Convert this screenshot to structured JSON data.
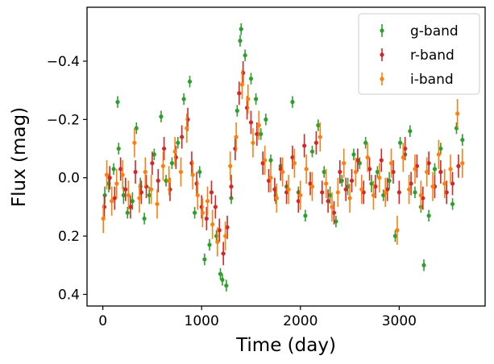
{
  "chart_data": {
    "type": "scatter",
    "title": "",
    "xlabel": "Time (day)",
    "ylabel": "Flux (mag)",
    "xlim": [
      -160,
      3870
    ],
    "ylim": [
      0.44,
      -0.585
    ],
    "y_inverted": true,
    "grid": false,
    "legend_position": "top-right",
    "xticks": [
      0,
      1000,
      2000,
      3000
    ],
    "xtick_labels": [
      "0",
      "1000",
      "2000",
      "3000"
    ],
    "yticks": [
      -0.4,
      -0.2,
      0.0,
      0.2,
      0.4
    ],
    "ytick_labels": [
      "−0.4",
      "−0.2",
      "0.0",
      "0.2",
      "0.4"
    ],
    "legend": [
      "g-band",
      "r-band",
      "i-band"
    ],
    "series": [
      {
        "name": "g-band",
        "color": "#2ca02c",
        "points": [
          {
            "x": 20,
            "y": 0.06,
            "e": 0.03
          },
          {
            "x": 60,
            "y": 0.02,
            "e": 0.03
          },
          {
            "x": 110,
            "y": -0.03,
            "e": 0.02
          },
          {
            "x": 150,
            "y": -0.26,
            "e": 0.02
          },
          {
            "x": 160,
            "y": -0.1,
            "e": 0.02
          },
          {
            "x": 210,
            "y": 0.06,
            "e": 0.03
          },
          {
            "x": 250,
            "y": 0.12,
            "e": 0.02
          },
          {
            "x": 300,
            "y": 0.08,
            "e": 0.03
          },
          {
            "x": 340,
            "y": -0.17,
            "e": 0.02
          },
          {
            "x": 380,
            "y": 0.03,
            "e": 0.03
          },
          {
            "x": 420,
            "y": 0.14,
            "e": 0.02
          },
          {
            "x": 470,
            "y": 0.06,
            "e": 0.03
          },
          {
            "x": 520,
            "y": -0.08,
            "e": 0.02
          },
          {
            "x": 590,
            "y": -0.21,
            "e": 0.02
          },
          {
            "x": 640,
            "y": 0.01,
            "e": 0.02
          },
          {
            "x": 700,
            "y": -0.05,
            "e": 0.02
          },
          {
            "x": 760,
            "y": -0.12,
            "e": 0.02
          },
          {
            "x": 820,
            "y": -0.27,
            "e": 0.02
          },
          {
            "x": 880,
            "y": -0.33,
            "e": 0.02
          },
          {
            "x": 930,
            "y": 0.12,
            "e": 0.02
          },
          {
            "x": 980,
            "y": -0.02,
            "e": 0.02
          },
          {
            "x": 1030,
            "y": 0.28,
            "e": 0.02
          },
          {
            "x": 1080,
            "y": 0.23,
            "e": 0.02
          },
          {
            "x": 1150,
            "y": 0.2,
            "e": 0.02
          },
          {
            "x": 1190,
            "y": 0.33,
            "e": 0.02
          },
          {
            "x": 1210,
            "y": 0.35,
            "e": 0.02
          },
          {
            "x": 1250,
            "y": 0.37,
            "e": 0.02
          },
          {
            "x": 1300,
            "y": 0.07,
            "e": 0.02
          },
          {
            "x": 1360,
            "y": -0.23,
            "e": 0.02
          },
          {
            "x": 1390,
            "y": -0.47,
            "e": 0.02
          },
          {
            "x": 1400,
            "y": -0.51,
            "e": 0.02
          },
          {
            "x": 1440,
            "y": -0.42,
            "e": 0.02
          },
          {
            "x": 1500,
            "y": -0.34,
            "e": 0.02
          },
          {
            "x": 1550,
            "y": -0.27,
            "e": 0.02
          },
          {
            "x": 1600,
            "y": -0.15,
            "e": 0.02
          },
          {
            "x": 1650,
            "y": -0.2,
            "e": 0.02
          },
          {
            "x": 1700,
            "y": -0.06,
            "e": 0.02
          },
          {
            "x": 1750,
            "y": 0.06,
            "e": 0.03
          },
          {
            "x": 1800,
            "y": -0.04,
            "e": 0.02
          },
          {
            "x": 1860,
            "y": 0.03,
            "e": 0.02
          },
          {
            "x": 1920,
            "y": -0.26,
            "e": 0.02
          },
          {
            "x": 1980,
            "y": 0.05,
            "e": 0.02
          },
          {
            "x": 2050,
            "y": 0.13,
            "e": 0.02
          },
          {
            "x": 2120,
            "y": -0.09,
            "e": 0.02
          },
          {
            "x": 2180,
            "y": -0.18,
            "e": 0.02
          },
          {
            "x": 2240,
            "y": -0.02,
            "e": 0.02
          },
          {
            "x": 2300,
            "y": 0.06,
            "e": 0.03
          },
          {
            "x": 2360,
            "y": 0.15,
            "e": 0.02
          },
          {
            "x": 2420,
            "y": 0.01,
            "e": 0.02
          },
          {
            "x": 2480,
            "y": 0.03,
            "e": 0.03
          },
          {
            "x": 2540,
            "y": -0.08,
            "e": 0.02
          },
          {
            "x": 2600,
            "y": -0.05,
            "e": 0.02
          },
          {
            "x": 2660,
            "y": -0.12,
            "e": 0.02
          },
          {
            "x": 2720,
            "y": 0.02,
            "e": 0.03
          },
          {
            "x": 2780,
            "y": -0.02,
            "e": 0.02
          },
          {
            "x": 2840,
            "y": 0.06,
            "e": 0.02
          },
          {
            "x": 2900,
            "y": 0.01,
            "e": 0.03
          },
          {
            "x": 2960,
            "y": 0.2,
            "e": 0.02
          },
          {
            "x": 3010,
            "y": -0.12,
            "e": 0.02
          },
          {
            "x": 3060,
            "y": -0.08,
            "e": 0.02
          },
          {
            "x": 3110,
            "y": -0.16,
            "e": 0.02
          },
          {
            "x": 3160,
            "y": 0.05,
            "e": 0.02
          },
          {
            "x": 3220,
            "y": 0.1,
            "e": 0.02
          },
          {
            "x": 3250,
            "y": 0.3,
            "e": 0.02
          },
          {
            "x": 3300,
            "y": 0.13,
            "e": 0.02
          },
          {
            "x": 3360,
            "y": -0.03,
            "e": 0.02
          },
          {
            "x": 3420,
            "y": -0.1,
            "e": 0.02
          },
          {
            "x": 3480,
            "y": 0.05,
            "e": 0.02
          },
          {
            "x": 3540,
            "y": 0.09,
            "e": 0.02
          },
          {
            "x": 3580,
            "y": -0.17,
            "e": 0.02
          },
          {
            "x": 3640,
            "y": -0.13,
            "e": 0.02
          }
        ]
      },
      {
        "name": "r-band",
        "color": "#d62728",
        "points": [
          {
            "x": 15,
            "y": 0.1,
            "e": 0.04
          },
          {
            "x": 70,
            "y": 0.0,
            "e": 0.04
          },
          {
            "x": 120,
            "y": 0.07,
            "e": 0.04
          },
          {
            "x": 180,
            "y": -0.03,
            "e": 0.04
          },
          {
            "x": 230,
            "y": 0.04,
            "e": 0.04
          },
          {
            "x": 280,
            "y": 0.1,
            "e": 0.04
          },
          {
            "x": 330,
            "y": -0.02,
            "e": 0.04
          },
          {
            "x": 390,
            "y": 0.05,
            "e": 0.04
          },
          {
            "x": 440,
            "y": 0.03,
            "e": 0.04
          },
          {
            "x": 500,
            "y": -0.05,
            "e": 0.04
          },
          {
            "x": 560,
            "y": 0.01,
            "e": 0.04
          },
          {
            "x": 620,
            "y": -0.1,
            "e": 0.04
          },
          {
            "x": 680,
            "y": 0.04,
            "e": 0.04
          },
          {
            "x": 740,
            "y": -0.07,
            "e": 0.04
          },
          {
            "x": 800,
            "y": -0.14,
            "e": 0.04
          },
          {
            "x": 860,
            "y": -0.2,
            "e": 0.04
          },
          {
            "x": 900,
            "y": -0.05,
            "e": 0.04
          },
          {
            "x": 950,
            "y": 0.02,
            "e": 0.04
          },
          {
            "x": 1000,
            "y": 0.1,
            "e": 0.04
          },
          {
            "x": 1050,
            "y": 0.14,
            "e": 0.04
          },
          {
            "x": 1100,
            "y": 0.05,
            "e": 0.04
          },
          {
            "x": 1140,
            "y": 0.1,
            "e": 0.04
          },
          {
            "x": 1180,
            "y": 0.18,
            "e": 0.04
          },
          {
            "x": 1220,
            "y": 0.26,
            "e": 0.04
          },
          {
            "x": 1260,
            "y": 0.17,
            "e": 0.04
          },
          {
            "x": 1300,
            "y": 0.03,
            "e": 0.04
          },
          {
            "x": 1340,
            "y": -0.1,
            "e": 0.04
          },
          {
            "x": 1380,
            "y": -0.29,
            "e": 0.04
          },
          {
            "x": 1420,
            "y": -0.36,
            "e": 0.04
          },
          {
            "x": 1460,
            "y": -0.24,
            "e": 0.04
          },
          {
            "x": 1500,
            "y": -0.19,
            "e": 0.04
          },
          {
            "x": 1560,
            "y": -0.15,
            "e": 0.04
          },
          {
            "x": 1620,
            "y": -0.05,
            "e": 0.04
          },
          {
            "x": 1680,
            "y": 0.01,
            "e": 0.04
          },
          {
            "x": 1740,
            "y": 0.04,
            "e": 0.04
          },
          {
            "x": 1800,
            "y": -0.03,
            "e": 0.04
          },
          {
            "x": 1860,
            "y": 0.05,
            "e": 0.04
          },
          {
            "x": 1920,
            "y": -0.07,
            "e": 0.04
          },
          {
            "x": 1980,
            "y": 0.08,
            "e": 0.04
          },
          {
            "x": 2040,
            "y": -0.11,
            "e": 0.04
          },
          {
            "x": 2100,
            "y": 0.02,
            "e": 0.04
          },
          {
            "x": 2160,
            "y": -0.12,
            "e": 0.04
          },
          {
            "x": 2220,
            "y": 0.05,
            "e": 0.04
          },
          {
            "x": 2280,
            "y": 0.08,
            "e": 0.04
          },
          {
            "x": 2340,
            "y": 0.12,
            "e": 0.04
          },
          {
            "x": 2400,
            "y": -0.02,
            "e": 0.04
          },
          {
            "x": 2460,
            "y": 0.04,
            "e": 0.04
          },
          {
            "x": 2520,
            "y": 0.01,
            "e": 0.04
          },
          {
            "x": 2580,
            "y": -0.06,
            "e": 0.04
          },
          {
            "x": 2640,
            "y": 0.05,
            "e": 0.04
          },
          {
            "x": 2700,
            "y": -0.03,
            "e": 0.04
          },
          {
            "x": 2760,
            "y": 0.03,
            "e": 0.04
          },
          {
            "x": 2820,
            "y": -0.06,
            "e": 0.04
          },
          {
            "x": 2880,
            "y": 0.04,
            "e": 0.04
          },
          {
            "x": 2940,
            "y": -0.02,
            "e": 0.04
          },
          {
            "x": 3000,
            "y": 0.05,
            "e": 0.04
          },
          {
            "x": 3060,
            "y": -0.1,
            "e": 0.04
          },
          {
            "x": 3120,
            "y": 0.02,
            "e": 0.04
          },
          {
            "x": 3180,
            "y": -0.04,
            "e": 0.04
          },
          {
            "x": 3240,
            "y": 0.07,
            "e": 0.04
          },
          {
            "x": 3300,
            "y": -0.05,
            "e": 0.04
          },
          {
            "x": 3360,
            "y": 0.03,
            "e": 0.04
          },
          {
            "x": 3420,
            "y": -0.02,
            "e": 0.04
          },
          {
            "x": 3480,
            "y": 0.05,
            "e": 0.04
          },
          {
            "x": 3540,
            "y": 0.02,
            "e": 0.04
          },
          {
            "x": 3600,
            "y": -0.04,
            "e": 0.04
          }
        ]
      },
      {
        "name": "i-band",
        "color": "#ff7f0e",
        "points": [
          {
            "x": 5,
            "y": 0.14,
            "e": 0.05
          },
          {
            "x": 40,
            "y": -0.01,
            "e": 0.05
          },
          {
            "x": 90,
            "y": 0.08,
            "e": 0.05
          },
          {
            "x": 140,
            "y": 0.02,
            "e": 0.05
          },
          {
            "x": 200,
            "y": -0.01,
            "e": 0.05
          },
          {
            "x": 260,
            "y": 0.06,
            "e": 0.05
          },
          {
            "x": 320,
            "y": -0.12,
            "e": 0.05
          },
          {
            "x": 370,
            "y": 0.07,
            "e": 0.05
          },
          {
            "x": 430,
            "y": -0.02,
            "e": 0.05
          },
          {
            "x": 490,
            "y": 0.04,
            "e": 0.05
          },
          {
            "x": 550,
            "y": 0.09,
            "e": 0.05
          },
          {
            "x": 610,
            "y": -0.04,
            "e": 0.05
          },
          {
            "x": 670,
            "y": 0.01,
            "e": 0.05
          },
          {
            "x": 730,
            "y": -0.09,
            "e": 0.05
          },
          {
            "x": 790,
            "y": -0.02,
            "e": 0.05
          },
          {
            "x": 850,
            "y": -0.17,
            "e": 0.05
          },
          {
            "x": 910,
            "y": -0.01,
            "e": 0.05
          },
          {
            "x": 960,
            "y": 0.06,
            "e": 0.05
          },
          {
            "x": 1010,
            "y": 0.12,
            "e": 0.05
          },
          {
            "x": 1060,
            "y": 0.08,
            "e": 0.05
          },
          {
            "x": 1110,
            "y": 0.16,
            "e": 0.05
          },
          {
            "x": 1160,
            "y": 0.22,
            "e": 0.05
          },
          {
            "x": 1240,
            "y": 0.2,
            "e": 0.05
          },
          {
            "x": 1290,
            "y": -0.04,
            "e": 0.05
          },
          {
            "x": 1350,
            "y": -0.14,
            "e": 0.05
          },
          {
            "x": 1410,
            "y": -0.32,
            "e": 0.05
          },
          {
            "x": 1470,
            "y": -0.27,
            "e": 0.05
          },
          {
            "x": 1520,
            "y": -0.12,
            "e": 0.05
          },
          {
            "x": 1580,
            "y": -0.18,
            "e": 0.05
          },
          {
            "x": 1640,
            "y": -0.06,
            "e": 0.05
          },
          {
            "x": 1700,
            "y": 0.0,
            "e": 0.05
          },
          {
            "x": 1760,
            "y": 0.07,
            "e": 0.05
          },
          {
            "x": 1820,
            "y": -0.02,
            "e": 0.05
          },
          {
            "x": 1880,
            "y": 0.04,
            "e": 0.05
          },
          {
            "x": 1940,
            "y": -0.05,
            "e": 0.05
          },
          {
            "x": 2000,
            "y": 0.06,
            "e": 0.05
          },
          {
            "x": 2060,
            "y": -0.03,
            "e": 0.05
          },
          {
            "x": 2120,
            "y": 0.03,
            "e": 0.05
          },
          {
            "x": 2200,
            "y": -0.14,
            "e": 0.05
          },
          {
            "x": 2260,
            "y": 0.02,
            "e": 0.05
          },
          {
            "x": 2320,
            "y": 0.1,
            "e": 0.05
          },
          {
            "x": 2380,
            "y": 0.05,
            "e": 0.05
          },
          {
            "x": 2440,
            "y": -0.05,
            "e": 0.05
          },
          {
            "x": 2500,
            "y": 0.07,
            "e": 0.05
          },
          {
            "x": 2560,
            "y": -0.02,
            "e": 0.05
          },
          {
            "x": 2620,
            "y": 0.04,
            "e": 0.05
          },
          {
            "x": 2680,
            "y": -0.07,
            "e": 0.05
          },
          {
            "x": 2740,
            "y": 0.06,
            "e": 0.05
          },
          {
            "x": 2800,
            "y": 0.0,
            "e": 0.05
          },
          {
            "x": 2860,
            "y": 0.05,
            "e": 0.05
          },
          {
            "x": 2920,
            "y": -0.05,
            "e": 0.05
          },
          {
            "x": 2980,
            "y": 0.18,
            "e": 0.05
          },
          {
            "x": 3040,
            "y": -0.07,
            "e": 0.05
          },
          {
            "x": 3100,
            "y": 0.04,
            "e": 0.05
          },
          {
            "x": 3160,
            "y": -0.03,
            "e": 0.05
          },
          {
            "x": 3220,
            "y": 0.06,
            "e": 0.05
          },
          {
            "x": 3280,
            "y": -0.02,
            "e": 0.05
          },
          {
            "x": 3340,
            "y": 0.03,
            "e": 0.05
          },
          {
            "x": 3400,
            "y": -0.08,
            "e": 0.05
          },
          {
            "x": 3460,
            "y": 0.02,
            "e": 0.05
          },
          {
            "x": 3520,
            "y": -0.03,
            "e": 0.05
          },
          {
            "x": 3590,
            "y": -0.22,
            "e": 0.05
          },
          {
            "x": 3640,
            "y": -0.05,
            "e": 0.05
          }
        ]
      }
    ]
  }
}
